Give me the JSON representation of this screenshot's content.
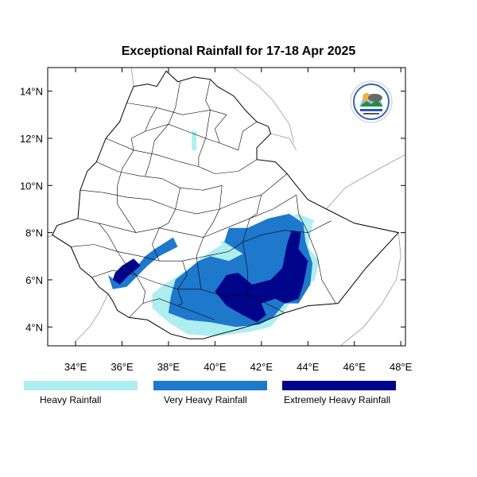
{
  "title": "Exceptional Rainfall for 17-18 Apr 2025",
  "map": {
    "lon_range": [
      32.8,
      48.2
    ],
    "lat_range": [
      3.2,
      15.0
    ],
    "lon_ticks": [
      {
        "value": 34,
        "label": "34°E"
      },
      {
        "value": 36,
        "label": "36°E"
      },
      {
        "value": 38,
        "label": "38°E"
      },
      {
        "value": 40,
        "label": "40°E"
      },
      {
        "value": 42,
        "label": "42°E"
      },
      {
        "value": 44,
        "label": "44°E"
      },
      {
        "value": 46,
        "label": "46°E"
      },
      {
        "value": 48,
        "label": "48°E"
      }
    ],
    "lat_ticks": [
      {
        "value": 4,
        "label": "4°N"
      },
      {
        "value": 6,
        "label": "6°N"
      },
      {
        "value": 8,
        "label": "8°N"
      },
      {
        "value": 10,
        "label": "10°N"
      },
      {
        "value": 12,
        "label": "12°N"
      },
      {
        "value": 14,
        "label": "14°N"
      }
    ]
  },
  "legend": [
    {
      "key": "heavy",
      "label": "Heavy Rainfall",
      "color": "#aeeef0"
    },
    {
      "key": "very",
      "label": "Very Heavy Rainfall",
      "color": "#1e78cc"
    },
    {
      "key": "extreme",
      "label": "Extremely Heavy Rainfall",
      "color": "#01058a"
    }
  ],
  "rain_areas": {
    "heavy": [
      [
        37.3,
        4.8
      ],
      [
        38.0,
        4.2
      ],
      [
        38.8,
        3.7
      ],
      [
        40.0,
        3.6
      ],
      [
        41.5,
        3.8
      ],
      [
        42.4,
        4.0
      ],
      [
        43.0,
        4.7
      ],
      [
        43.5,
        5.4
      ],
      [
        44.3,
        6.0
      ],
      [
        44.5,
        6.8
      ],
      [
        44.0,
        7.4
      ],
      [
        44.2,
        8.3
      ],
      [
        43.4,
        8.6
      ],
      [
        42.5,
        8.4
      ],
      [
        41.2,
        7.8
      ],
      [
        40.3,
        7.5
      ],
      [
        39.5,
        7.0
      ],
      [
        38.9,
        6.5
      ],
      [
        38.3,
        6.1
      ],
      [
        37.8,
        5.8
      ],
      [
        37.3,
        5.4
      ]
    ],
    "heavy2": [
      [
        40.2,
        7.6
      ],
      [
        41.2,
        7.9
      ],
      [
        42.4,
        8.2
      ],
      [
        43.0,
        8.6
      ],
      [
        43.6,
        8.8
      ],
      [
        44.3,
        8.5
      ],
      [
        43.8,
        8.0
      ],
      [
        42.8,
        7.6
      ],
      [
        41.8,
        7.4
      ],
      [
        40.8,
        7.2
      ]
    ],
    "heavy3": [
      [
        39.0,
        12.3
      ],
      [
        39.2,
        12.3
      ],
      [
        39.2,
        11.5
      ],
      [
        39.0,
        11.5
      ]
    ],
    "very": [
      [
        38.0,
        4.6
      ],
      [
        38.8,
        4.3
      ],
      [
        39.8,
        4.2
      ],
      [
        40.9,
        4.0
      ],
      [
        41.9,
        4.1
      ],
      [
        42.5,
        4.4
      ],
      [
        43.0,
        5.0
      ],
      [
        43.6,
        5.0
      ],
      [
        44.1,
        5.8
      ],
      [
        44.2,
        6.7
      ],
      [
        43.9,
        7.6
      ],
      [
        43.8,
        8.4
      ],
      [
        43.2,
        8.8
      ],
      [
        42.3,
        8.6
      ],
      [
        41.4,
        8.2
      ],
      [
        40.6,
        8.2
      ],
      [
        40.4,
        7.6
      ],
      [
        41.2,
        7.1
      ],
      [
        40.6,
        6.8
      ],
      [
        39.8,
        7.0
      ],
      [
        39.3,
        6.8
      ],
      [
        38.8,
        6.4
      ],
      [
        38.3,
        6.0
      ],
      [
        38.1,
        5.3
      ]
    ],
    "very_west": [
      [
        35.4,
        6.2
      ],
      [
        35.8,
        5.9
      ],
      [
        36.5,
        6.4
      ],
      [
        37.0,
        7.0
      ],
      [
        37.4,
        7.3
      ],
      [
        38.2,
        7.8
      ],
      [
        38.4,
        7.4
      ],
      [
        37.6,
        7.0
      ],
      [
        37.1,
        6.6
      ],
      [
        36.6,
        6.1
      ],
      [
        36.2,
        5.7
      ],
      [
        35.6,
        5.6
      ]
    ],
    "extreme": [
      [
        40.0,
        5.5
      ],
      [
        40.5,
        4.9
      ],
      [
        41.2,
        4.5
      ],
      [
        41.8,
        4.2
      ],
      [
        42.2,
        4.5
      ],
      [
        42.0,
        5.0
      ],
      [
        42.6,
        5.2
      ],
      [
        43.0,
        5.0
      ],
      [
        43.6,
        5.2
      ],
      [
        43.8,
        5.8
      ],
      [
        44.0,
        6.8
      ],
      [
        43.6,
        7.3
      ],
      [
        43.7,
        8.0
      ],
      [
        43.3,
        8.1
      ],
      [
        43.1,
        7.5
      ],
      [
        42.9,
        6.5
      ],
      [
        42.4,
        6.0
      ],
      [
        41.6,
        5.8
      ],
      [
        41.0,
        6.3
      ],
      [
        40.5,
        6.2
      ]
    ],
    "extreme_west": [
      [
        35.6,
        6.0
      ],
      [
        35.9,
        5.8
      ],
      [
        36.3,
        6.2
      ],
      [
        36.8,
        6.6
      ],
      [
        36.5,
        6.9
      ],
      [
        36.0,
        6.6
      ],
      [
        35.7,
        6.3
      ]
    ]
  },
  "country_outline": [
    [
      37.9,
      14.85
    ],
    [
      38.4,
      14.4
    ],
    [
      39.1,
      14.6
    ],
    [
      39.8,
      14.5
    ],
    [
      40.1,
      14.2
    ],
    [
      40.8,
      13.8
    ],
    [
      41.3,
      13.2
    ],
    [
      41.8,
      12.7
    ],
    [
      42.3,
      12.5
    ],
    [
      42.4,
      12.2
    ],
    [
      41.8,
      11.6
    ],
    [
      41.8,
      11.1
    ],
    [
      42.6,
      11.0
    ],
    [
      43.1,
      10.5
    ],
    [
      43.5,
      10.0
    ],
    [
      44.0,
      9.4
    ],
    [
      44.8,
      9.0
    ],
    [
      46.0,
      8.4
    ],
    [
      47.9,
      8.0
    ],
    [
      46.5,
      6.5
    ],
    [
      45.3,
      5.0
    ],
    [
      44.0,
      4.9
    ],
    [
      43.0,
      4.6
    ],
    [
      42.0,
      4.2
    ],
    [
      41.0,
      3.9
    ],
    [
      40.2,
      3.7
    ],
    [
      39.5,
      3.5
    ],
    [
      38.9,
      3.5
    ],
    [
      38.1,
      3.7
    ],
    [
      37.1,
      4.3
    ],
    [
      36.3,
      4.4
    ],
    [
      35.8,
      4.7
    ],
    [
      35.6,
      5.1
    ],
    [
      35.4,
      5.4
    ],
    [
      35.0,
      5.7
    ],
    [
      34.7,
      6.1
    ],
    [
      34.2,
      6.5
    ],
    [
      33.8,
      7.4
    ],
    [
      33.0,
      7.9
    ],
    [
      33.2,
      8.3
    ],
    [
      34.1,
      8.6
    ],
    [
      34.2,
      9.8
    ],
    [
      34.5,
      10.6
    ],
    [
      34.9,
      11.0
    ],
    [
      35.3,
      12.0
    ],
    [
      35.9,
      12.7
    ],
    [
      36.2,
      13.5
    ],
    [
      36.5,
      14.2
    ],
    [
      37.1,
      14.3
    ],
    [
      37.5,
      14.2
    ]
  ],
  "neighbor_lines": [
    [
      [
        36.5,
        14.2
      ],
      [
        36.4,
        15.0
      ]
    ],
    [
      [
        40.8,
        15.0
      ],
      [
        41.9,
        14.2
      ],
      [
        42.5,
        13.6
      ],
      [
        43.2,
        12.6
      ],
      [
        43.4,
        11.8
      ]
    ],
    [
      [
        42.4,
        12.2
      ],
      [
        43.2,
        12.0
      ],
      [
        43.5,
        11.5
      ]
    ],
    [
      [
        44.8,
        9.0
      ],
      [
        45.6,
        9.9
      ],
      [
        46.5,
        10.4
      ],
      [
        47.6,
        11.0
      ],
      [
        48.2,
        11.3
      ]
    ],
    [
      [
        47.9,
        8.0
      ],
      [
        48.0,
        7.0
      ],
      [
        47.8,
        6.0
      ],
      [
        47.2,
        5.0
      ],
      [
        46.4,
        4.0
      ],
      [
        45.4,
        3.2
      ]
    ],
    [
      [
        33.0,
        7.9
      ],
      [
        32.8,
        7.8
      ]
    ],
    [
      [
        35.4,
        5.4
      ],
      [
        35.0,
        4.6
      ],
      [
        34.6,
        4.0
      ],
      [
        34.0,
        3.4
      ]
    ]
  ],
  "admin_lines": [
    [
      [
        36.2,
        13.5
      ],
      [
        37.5,
        13.3
      ],
      [
        38.6,
        13.0
      ],
      [
        39.8,
        13.2
      ],
      [
        40.5,
        13.0
      ]
    ],
    [
      [
        37.0,
        12.3
      ],
      [
        38.0,
        12.6
      ],
      [
        38.8,
        12.3
      ],
      [
        39.6,
        12.0
      ],
      [
        40.2,
        11.8
      ],
      [
        41.0,
        11.5
      ]
    ],
    [
      [
        35.3,
        12.0
      ],
      [
        36.5,
        11.5
      ],
      [
        37.5,
        11.3
      ],
      [
        38.5,
        11.0
      ],
      [
        39.3,
        10.8
      ],
      [
        40.0,
        10.5
      ],
      [
        41.0,
        10.6
      ],
      [
        41.8,
        11.1
      ]
    ],
    [
      [
        34.9,
        11.0
      ],
      [
        35.8,
        10.6
      ],
      [
        36.8,
        10.4
      ],
      [
        37.7,
        10.3
      ],
      [
        38.5,
        9.9
      ],
      [
        39.5,
        9.8
      ],
      [
        40.3,
        10.0
      ]
    ],
    [
      [
        34.2,
        9.8
      ],
      [
        35.2,
        9.7
      ],
      [
        36.2,
        9.5
      ],
      [
        37.2,
        9.4
      ],
      [
        38.3,
        9.0
      ],
      [
        39.2,
        8.8
      ],
      [
        40.2,
        9.0
      ],
      [
        41.2,
        9.4
      ],
      [
        42.0,
        9.6
      ],
      [
        43.1,
        10.5
      ]
    ],
    [
      [
        34.1,
        8.6
      ],
      [
        35.0,
        8.4
      ],
      [
        35.8,
        8.2
      ],
      [
        36.6,
        8.0
      ],
      [
        37.6,
        8.2
      ],
      [
        38.5,
        8.0
      ],
      [
        39.5,
        7.8
      ],
      [
        40.5,
        8.2
      ],
      [
        41.5,
        8.6
      ],
      [
        42.5,
        9.0
      ],
      [
        43.5,
        9.6
      ]
    ],
    [
      [
        33.8,
        7.4
      ],
      [
        34.8,
        7.5
      ],
      [
        35.8,
        7.2
      ],
      [
        36.8,
        7.0
      ],
      [
        37.6,
        6.8
      ],
      [
        38.6,
        6.8
      ],
      [
        39.6,
        7.0
      ],
      [
        40.6,
        7.2
      ]
    ],
    [
      [
        34.7,
        6.1
      ],
      [
        35.6,
        6.4
      ],
      [
        36.6,
        6.2
      ],
      [
        37.4,
        5.9
      ],
      [
        38.4,
        5.6
      ],
      [
        39.4,
        5.6
      ],
      [
        40.4,
        5.3
      ],
      [
        41.4,
        5.4
      ],
      [
        42.2,
        5.0
      ],
      [
        43.0,
        4.6
      ]
    ],
    [
      [
        36.3,
        4.4
      ],
      [
        36.9,
        5.0
      ],
      [
        37.6,
        5.2
      ],
      [
        38.4,
        4.9
      ],
      [
        39.2,
        4.6
      ],
      [
        40.0,
        4.3
      ]
    ],
    [
      [
        38.5,
        14.4
      ],
      [
        38.3,
        13.3
      ],
      [
        38.0,
        12.6
      ],
      [
        37.4,
        11.9
      ],
      [
        37.2,
        11.0
      ],
      [
        37.0,
        10.4
      ]
    ],
    [
      [
        39.8,
        14.5
      ],
      [
        39.6,
        13.6
      ],
      [
        39.8,
        13.2
      ],
      [
        39.6,
        12.0
      ],
      [
        39.3,
        11.2
      ],
      [
        39.3,
        10.8
      ]
    ],
    [
      [
        36.5,
        11.5
      ],
      [
        36.0,
        10.7
      ],
      [
        35.8,
        10.0
      ],
      [
        35.8,
        9.2
      ],
      [
        36.2,
        8.6
      ],
      [
        36.6,
        8.0
      ]
    ],
    [
      [
        38.5,
        9.9
      ],
      [
        38.3,
        9.0
      ],
      [
        38.0,
        8.4
      ],
      [
        37.6,
        8.2
      ],
      [
        37.3,
        7.5
      ],
      [
        37.6,
        6.8
      ]
    ],
    [
      [
        40.3,
        10.0
      ],
      [
        40.2,
        9.0
      ],
      [
        39.9,
        8.4
      ],
      [
        39.5,
        7.8
      ],
      [
        39.2,
        7.0
      ],
      [
        39.4,
        5.6
      ]
    ],
    [
      [
        42.0,
        9.6
      ],
      [
        41.8,
        8.8
      ],
      [
        41.5,
        8.6
      ],
      [
        41.2,
        7.6
      ],
      [
        41.4,
        6.4
      ],
      [
        41.4,
        5.4
      ]
    ],
    [
      [
        43.5,
        9.6
      ],
      [
        43.6,
        8.8
      ],
      [
        44.0,
        8.0
      ],
      [
        44.4,
        7.0
      ],
      [
        44.6,
        6.0
      ],
      [
        45.2,
        5.0
      ]
    ],
    [
      [
        40.6,
        7.2
      ],
      [
        41.2,
        7.6
      ],
      [
        42.0,
        7.9
      ],
      [
        43.0,
        8.1
      ],
      [
        44.0,
        8.0
      ],
      [
        45.0,
        8.5
      ]
    ],
    [
      [
        35.0,
        8.4
      ],
      [
        35.4,
        7.9
      ],
      [
        35.8,
        7.2
      ],
      [
        36.2,
        6.6
      ],
      [
        36.6,
        6.2
      ],
      [
        37.0,
        5.5
      ],
      [
        36.9,
        5.0
      ]
    ],
    [
      [
        38.6,
        6.8
      ],
      [
        38.8,
        6.2
      ],
      [
        38.4,
        5.6
      ],
      [
        38.6,
        5.0
      ],
      [
        38.4,
        4.9
      ]
    ],
    [
      [
        41.0,
        11.5
      ],
      [
        41.2,
        12.3
      ],
      [
        41.8,
        12.7
      ]
    ],
    [
      [
        40.5,
        13.0
      ],
      [
        40.0,
        12.4
      ],
      [
        40.2,
        11.8
      ]
    ],
    [
      [
        37.5,
        13.3
      ],
      [
        37.2,
        12.8
      ],
      [
        37.0,
        12.3
      ],
      [
        36.4,
        12.0
      ],
      [
        36.5,
        11.5
      ]
    ]
  ]
}
